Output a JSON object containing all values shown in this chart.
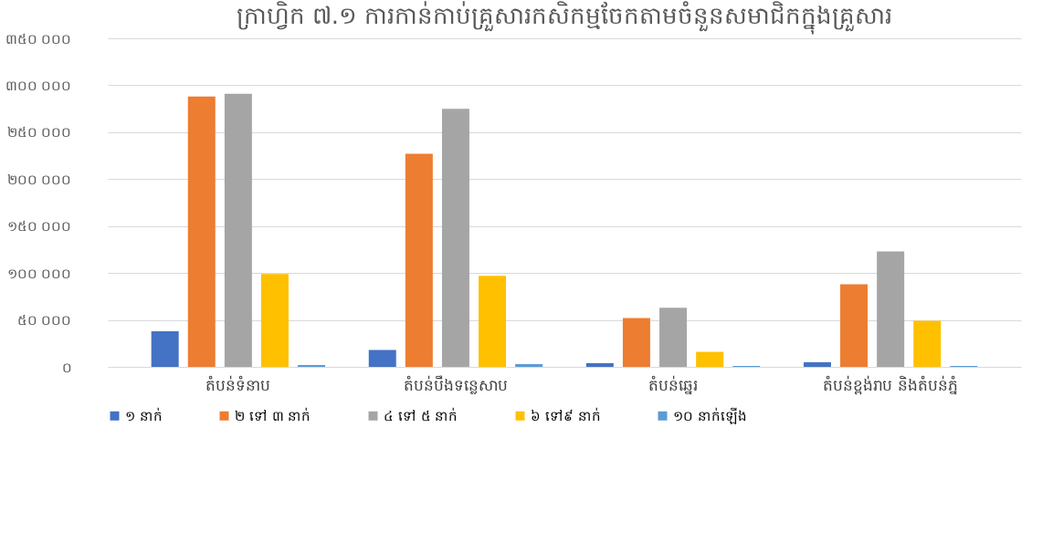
{
  "chart_data": {
    "type": "bar",
    "title": "ក្រាហ្វិក ៧.១ ការកាន់កាប់គ្រួសារកសិកម្មចែកតាមចំនួនសមាជិកក្នុងគ្រួសារ",
    "categories": [
      "តំបន់ទំនាប",
      "តំបន់បឹងទន្លេសាប",
      "តំបន់ឆ្នេរ",
      "តំបន់ខ្ពង់រាប និងតំបន់ភ្នំ"
    ],
    "series": [
      {
        "name": "១ នាក់",
        "color": "#4472c4",
        "values": [
          38000,
          18000,
          4000,
          5000
        ]
      },
      {
        "name": "២ ទៅ ៣ នាក់",
        "color": "#ed7d31",
        "values": [
          288000,
          227000,
          52000,
          88000
        ]
      },
      {
        "name": "៤ ទៅ ៥ នាក់",
        "color": "#a5a5a5",
        "values": [
          291000,
          275000,
          63000,
          123000
        ]
      },
      {
        "name": "៦ ទៅ៩ នាក់",
        "color": "#ffc000",
        "values": [
          99000,
          97000,
          16000,
          49000
        ]
      },
      {
        "name": "១០ នាក់ឡើង",
        "color": "#5b9bd5",
        "values": [
          2000,
          3000,
          1000,
          1000
        ]
      }
    ],
    "ylim": [
      0,
      350000
    ],
    "yticks": [
      {
        "value": 0,
        "label": "០"
      },
      {
        "value": 50000,
        "label": "៥០ ០០០"
      },
      {
        "value": 100000,
        "label": "១០០ ០០០"
      },
      {
        "value": 150000,
        "label": "១៥០ ០០០"
      },
      {
        "value": 200000,
        "label": "២០០ ០០០"
      },
      {
        "value": 250000,
        "label": "២៥០ ០០០"
      },
      {
        "value": 300000,
        "label": "៣០០ ០០០"
      },
      {
        "value": 350000,
        "label": "៣៥០ ០០០"
      }
    ],
    "grid": "y",
    "legend": "bottom"
  }
}
